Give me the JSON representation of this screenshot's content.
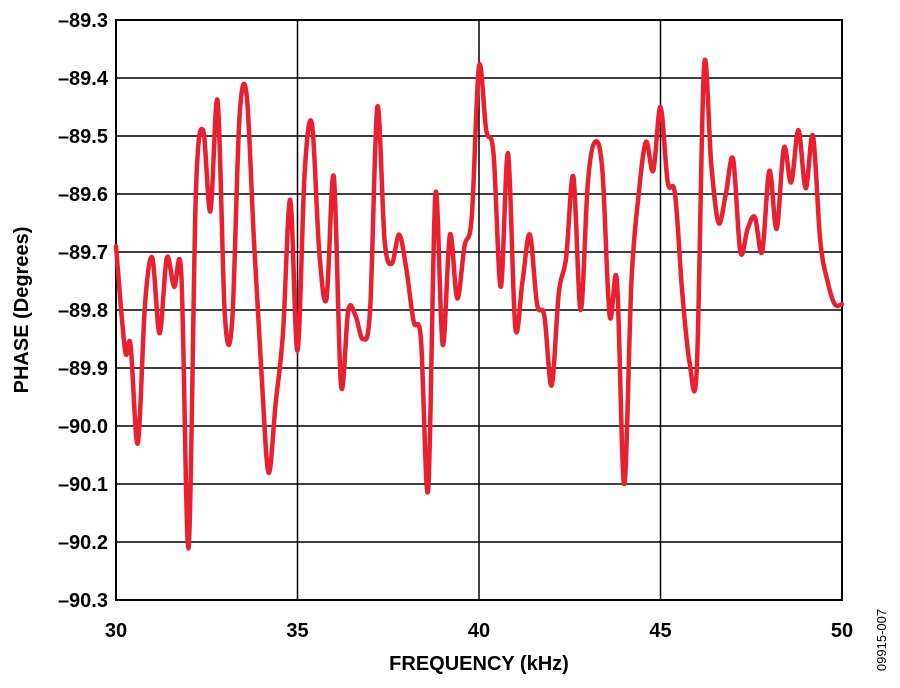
{
  "chart_data": {
    "type": "line",
    "title": "",
    "xlabel": "FREQUENCY (kHz)",
    "ylabel": "PHASE (Degrees)",
    "xlim": [
      30,
      50
    ],
    "ylim": [
      -90.3,
      -89.3
    ],
    "xticks": [
      30,
      35,
      40,
      45,
      50
    ],
    "xtick_labels": [
      "30",
      "35",
      "40",
      "45",
      "50"
    ],
    "yticks": [
      -89.3,
      -89.4,
      -89.5,
      -89.6,
      -89.7,
      -89.8,
      -89.9,
      -90.0,
      -90.1,
      -90.2,
      -90.3
    ],
    "ytick_labels": [
      "–89.3",
      "–89.4",
      "–89.5",
      "–89.6",
      "–89.7",
      "–89.8",
      "–89.9",
      "–90.0",
      "–90.1",
      "–90.2",
      "–90.3"
    ],
    "grid": true,
    "line_color": "#e8202f",
    "series": [
      {
        "x": [
          30.0,
          30.25,
          30.4,
          30.6,
          30.8,
          31.0,
          31.2,
          31.4,
          31.6,
          31.8,
          32.0,
          32.2,
          32.4,
          32.6,
          32.8,
          33.0,
          33.2,
          33.4,
          33.6,
          33.8,
          34.0,
          34.2,
          34.4,
          34.6,
          34.8,
          35.0,
          35.2,
          35.4,
          35.6,
          35.8,
          36.0,
          36.2,
          36.4,
          36.6,
          36.8,
          37.0,
          37.2,
          37.4,
          37.6,
          37.8,
          38.0,
          38.2,
          38.4,
          38.6,
          38.8,
          39.0,
          39.2,
          39.4,
          39.6,
          39.8,
          40.0,
          40.2,
          40.4,
          40.6,
          40.8,
          41.0,
          41.2,
          41.4,
          41.6,
          41.8,
          42.0,
          42.2,
          42.4,
          42.6,
          42.8,
          43.0,
          43.2,
          43.4,
          43.6,
          43.8,
          44.0,
          44.2,
          44.4,
          44.6,
          44.8,
          45.0,
          45.2,
          45.4,
          45.6,
          45.8,
          46.0,
          46.2,
          46.4,
          46.6,
          46.8,
          47.0,
          47.2,
          47.4,
          47.6,
          47.8,
          48.0,
          48.2,
          48.4,
          48.6,
          48.8,
          49.0,
          49.2,
          49.4,
          49.6,
          49.8,
          50.0
        ],
        "y": [
          -89.69,
          -89.87,
          -89.86,
          -90.03,
          -89.79,
          -89.71,
          -89.84,
          -89.71,
          -89.76,
          -89.74,
          -90.21,
          -89.6,
          -89.49,
          -89.63,
          -89.44,
          -89.81,
          -89.82,
          -89.47,
          -89.43,
          -89.68,
          -89.9,
          -90.08,
          -89.96,
          -89.84,
          -89.61,
          -89.87,
          -89.56,
          -89.48,
          -89.7,
          -89.78,
          -89.57,
          -89.93,
          -89.8,
          -89.81,
          -89.85,
          -89.8,
          -89.45,
          -89.68,
          -89.72,
          -89.67,
          -89.73,
          -89.82,
          -89.85,
          -90.11,
          -89.6,
          -89.86,
          -89.67,
          -89.78,
          -89.69,
          -89.64,
          -89.38,
          -89.49,
          -89.53,
          -89.76,
          -89.53,
          -89.83,
          -89.75,
          -89.67,
          -89.79,
          -89.81,
          -89.93,
          -89.77,
          -89.71,
          -89.57,
          -89.8,
          -89.58,
          -89.51,
          -89.56,
          -89.81,
          -89.75,
          -90.1,
          -89.75,
          -89.6,
          -89.51,
          -89.56,
          -89.45,
          -89.58,
          -89.6,
          -89.77,
          -89.89,
          -89.9,
          -89.38,
          -89.55,
          -89.65,
          -89.6,
          -89.54,
          -89.7,
          -89.66,
          -89.64,
          -89.7,
          -89.56,
          -89.66,
          -89.52,
          -89.58,
          -89.49,
          -89.59,
          -89.5,
          -89.68,
          -89.75,
          -89.79,
          -89.79
        ]
      }
    ],
    "figure_id": "09915-007"
  }
}
